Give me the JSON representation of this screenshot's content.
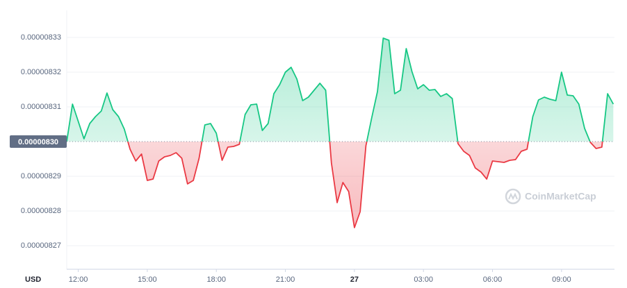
{
  "chart_data": {
    "type": "line",
    "currency": "USD",
    "watermark": "CoinMarketCap",
    "x": [
      11.5,
      11.75,
      12,
      12.25,
      12.5,
      12.75,
      13,
      13.25,
      13.5,
      13.75,
      14,
      14.25,
      14.5,
      14.75,
      15,
      15.25,
      15.5,
      15.75,
      16,
      16.25,
      16.5,
      16.75,
      17,
      17.25,
      17.5,
      17.75,
      18,
      18.25,
      18.5,
      18.75,
      19,
      19.25,
      19.5,
      19.75,
      20,
      20.25,
      20.5,
      20.75,
      21,
      21.25,
      21.5,
      21.75,
      22,
      22.25,
      22.5,
      22.75,
      23,
      23.25,
      23.5,
      23.75,
      24,
      24.25,
      24.5,
      24.75,
      25,
      25.25,
      25.5,
      25.75,
      26,
      26.25,
      26.5,
      26.75,
      27,
      27.25,
      27.5,
      27.75,
      28,
      28.25,
      28.5,
      28.75,
      29,
      29.25,
      29.5,
      29.75,
      30,
      30.25,
      30.5,
      30.75,
      31,
      31.25,
      31.5,
      31.75,
      32,
      32.25,
      32.5,
      32.75,
      33,
      33.25,
      33.5,
      33.75,
      34,
      34.25,
      34.5,
      34.75,
      35,
      35.25
    ],
    "series": [
      {
        "color": "#16c784",
        "color_below": "#ea3943",
        "values": [
          8.3e-06,
          8.3108e-06,
          8.3058e-06,
          8.3008e-06,
          8.3052e-06,
          8.3072e-06,
          8.3088e-06,
          8.314e-06,
          8.3092e-06,
          8.3072e-06,
          8.3036e-06,
          8.2978e-06,
          8.2944e-06,
          8.2964e-06,
          8.2888e-06,
          8.2892e-06,
          8.2944e-06,
          8.2956e-06,
          8.296e-06,
          8.2968e-06,
          8.2952e-06,
          8.2878e-06,
          8.2888e-06,
          8.2952e-06,
          8.3048e-06,
          8.3052e-06,
          8.3024e-06,
          8.2946e-06,
          8.2984e-06,
          8.2986e-06,
          8.2992e-06,
          8.3078e-06,
          8.3106e-06,
          8.3108e-06,
          8.3032e-06,
          8.3052e-06,
          8.3138e-06,
          8.3164e-06,
          8.32e-06,
          8.3214e-06,
          8.318e-06,
          8.3118e-06,
          8.3128e-06,
          8.3148e-06,
          8.3168e-06,
          8.3148e-06,
          8.2938e-06,
          8.2824e-06,
          8.2882e-06,
          8.2856e-06,
          8.2752e-06,
          8.2798e-06,
          8.2988e-06,
          8.3068e-06,
          8.3144e-06,
          8.3298e-06,
          8.3292e-06,
          8.3138e-06,
          8.3148e-06,
          8.3268e-06,
          8.3202e-06,
          8.3152e-06,
          8.3164e-06,
          8.3148e-06,
          8.315e-06,
          8.313e-06,
          8.3138e-06,
          8.3124e-06,
          8.2994e-06,
          8.2972e-06,
          8.296e-06,
          8.2924e-06,
          8.2912e-06,
          8.2892e-06,
          8.2944e-06,
          8.2942e-06,
          8.294e-06,
          8.2946e-06,
          8.2948e-06,
          8.2972e-06,
          8.2978e-06,
          8.3072e-06,
          8.312e-06,
          8.3128e-06,
          8.3122e-06,
          8.3118e-06,
          8.32e-06,
          8.3134e-06,
          8.3132e-06,
          8.3108e-06,
          8.3038e-06,
          8.2998e-06,
          8.298e-06,
          8.2984e-06,
          8.3138e-06,
          8.3108e-06
        ]
      }
    ],
    "baseline": {
      "value": 8.3e-06,
      "label": "0.00000830"
    },
    "xlim": [
      11.5,
      35.3
    ],
    "ylim": [
      8.2632e-06,
      8.3378e-06
    ],
    "xticks": [
      {
        "value": 12,
        "label": "12:00"
      },
      {
        "value": 15,
        "label": "15:00"
      },
      {
        "value": 18,
        "label": "18:00"
      },
      {
        "value": 21,
        "label": "21:00"
      },
      {
        "value": 24,
        "label": "27"
      },
      {
        "value": 27,
        "label": "03:00"
      },
      {
        "value": 30,
        "label": "06:00"
      },
      {
        "value": 33,
        "label": "09:00"
      }
    ],
    "yticks": [
      {
        "value": 8.33e-06,
        "label": "0.00000833"
      },
      {
        "value": 8.32e-06,
        "label": "0.00000832"
      },
      {
        "value": 8.31e-06,
        "label": "0.00000831"
      },
      {
        "value": 8.29e-06,
        "label": "0.00000829"
      },
      {
        "value": 8.28e-06,
        "label": "0.00000828"
      },
      {
        "value": 8.27e-06,
        "label": "0.00000827"
      }
    ],
    "grid": true
  }
}
